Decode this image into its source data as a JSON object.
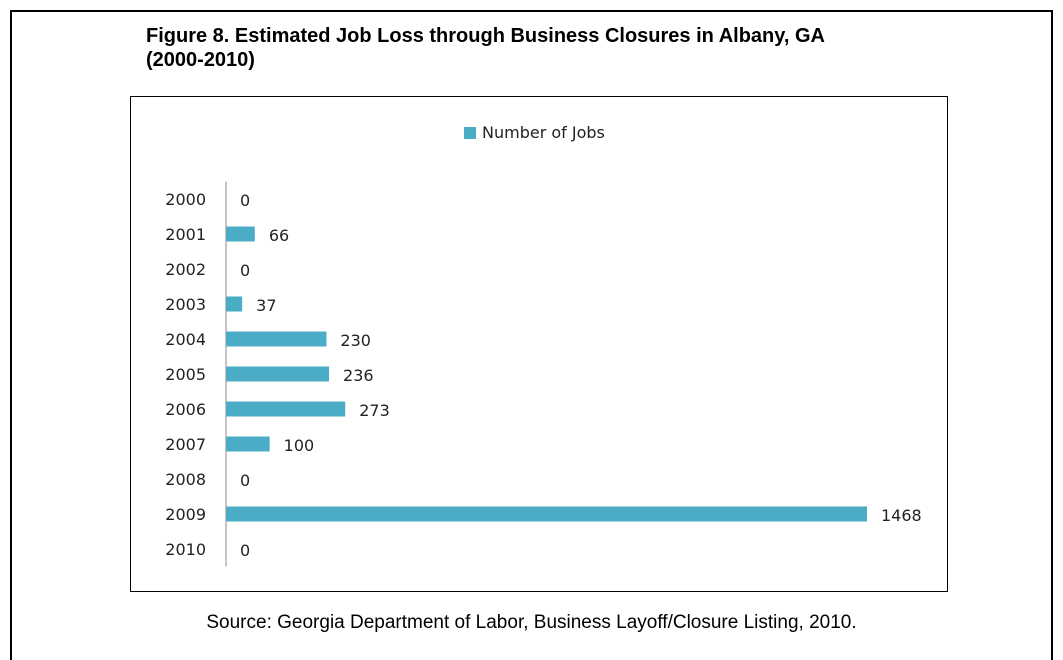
{
  "figure": {
    "title": "Figure 8. Estimated Job Loss through Business Closures in Albany, GA\n(2000-2010)",
    "source": "Source: Georgia Department of Labor, Business Layoff/Closure Listing, 2010."
  },
  "chart_data": {
    "type": "bar",
    "orientation": "horizontal",
    "categories": [
      "2000",
      "2001",
      "2002",
      "2003",
      "2004",
      "2005",
      "2006",
      "2007",
      "2008",
      "2009",
      "2010"
    ],
    "series": [
      {
        "name": "Number of Jobs",
        "values": [
          0,
          66,
          0,
          37,
          230,
          236,
          273,
          100,
          0,
          1468,
          0
        ],
        "color": "#4bacc6"
      }
    ],
    "data_labels": [
      "0",
      "66",
      "0",
      "37",
      "230",
      "236",
      "273",
      "100",
      "0",
      "1468",
      "0"
    ],
    "legend_position": "top-center",
    "grid": false,
    "xlim": [
      0,
      1468
    ]
  }
}
